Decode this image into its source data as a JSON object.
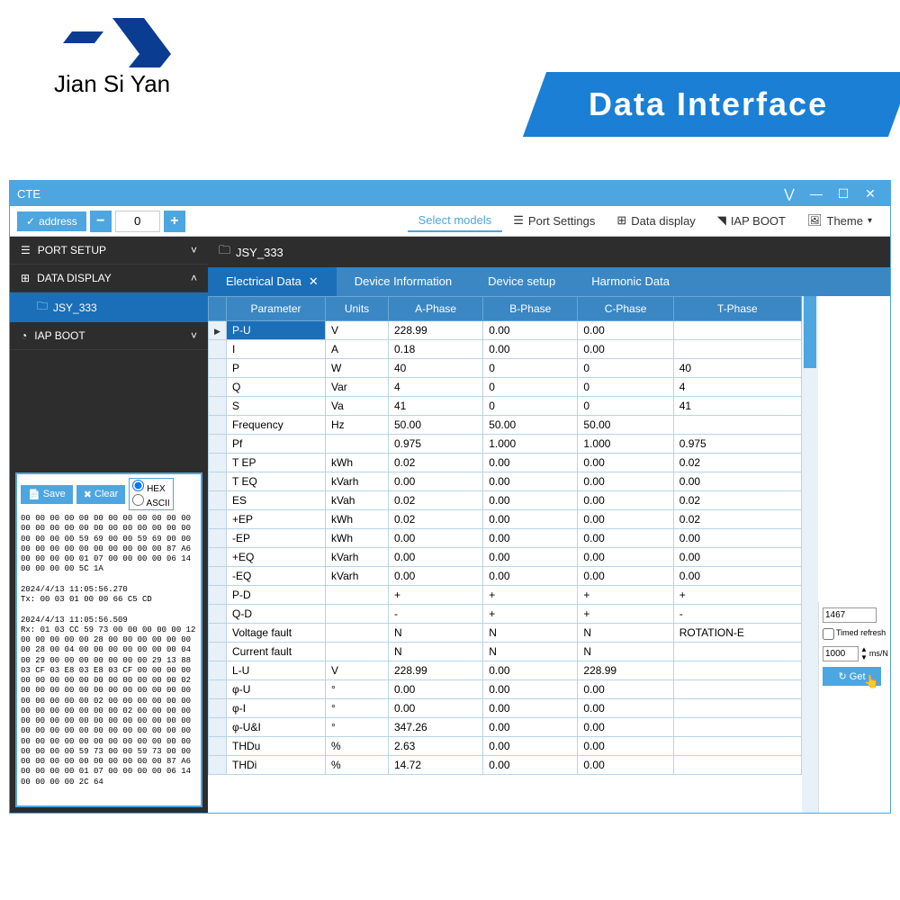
{
  "brand": {
    "logo_text": "Jian Si Yan",
    "logo_color": "#0a3d91"
  },
  "banner": {
    "title": "Data Interface",
    "bg": "#1b7fd6"
  },
  "window": {
    "title": "CTE"
  },
  "toolbar": {
    "address_label": "address",
    "address_value": "0",
    "items": [
      {
        "label": "Select models",
        "active": true
      },
      {
        "label": "Port Settings",
        "icon": "☰"
      },
      {
        "label": "Data display",
        "icon": "⊞"
      },
      {
        "label": "IAP BOOT",
        "icon": "◥"
      },
      {
        "label": "Theme",
        "icon": "🖼",
        "chev": true
      }
    ]
  },
  "sidebar": {
    "items": [
      {
        "icon": "☰",
        "label": "PORT SETUP",
        "chev": "˅"
      },
      {
        "icon": "⊞",
        "label": "DATA DISPLAY",
        "chev": "˄"
      },
      {
        "sub": true,
        "icon": "🗀",
        "label": "JSY_333"
      },
      {
        "icon": "◔",
        "label": "IAP BOOT",
        "chev": "˅"
      }
    ]
  },
  "log": {
    "save": "Save",
    "clear": "Clear",
    "hex": "HEX",
    "ascii": "ASCII",
    "content": "00 00 00 00 00 00 00 00 00 00 00 00\n00 00 00 00 00 00 00 00 00 00 00 00\n00 00 00 00 59 69 00 00 59 69 00 00\n00 00 00 00 00 00 00 00 00 00 87 A6\n00 00 00 00 01 07 00 00 00 00 06 14\n00 00 00 00 5C 1A\n\n2024/4/13 11:05:56.270\nTx: 00 03 01 00 00 66 C5 CD\n\n2024/4/13 11:05:56.509\nRx: 01 03 CC 59 73 00 00 00 00 00 12\n00 00 00 00 00 28 00 00 00 00 00 00\n00 28 00 04 00 00 00 00 00 00 00 04\n00 29 00 00 00 00 00 00 00 29 13 88\n03 CF 03 E8 03 E8 03 CF 00 00 00 00\n00 00 00 00 00 00 00 00 00 00 00 02\n00 00 00 00 00 00 00 00 00 00 00 00\n00 00 00 00 00 02 00 00 00 00 00 00\n00 00 00 00 00 00 00 02 00 00 00 00\n00 00 00 00 00 00 00 00 00 00 00 00\n00 00 00 00 00 00 00 00 00 00 00 00\n00 00 00 00 00 00 00 00 00 00 00 00\n00 00 00 00 59 73 00 00 59 73 00 00\n00 00 00 00 00 00 00 00 00 00 87 A6\n00 00 00 00 01 07 00 00 00 00 06 14\n00 00 00 00 2C 64"
  },
  "breadcrumb": {
    "icon": "🗀",
    "label": "JSY_333"
  },
  "tabs": [
    {
      "label": "Electrical Data",
      "active": true,
      "closable": true
    },
    {
      "label": "Device Information"
    },
    {
      "label": "Device setup"
    },
    {
      "label": "Harmonic Data"
    }
  ],
  "table": {
    "columns": [
      "",
      "Parameter",
      "Units",
      "A-Phase",
      "B-Phase",
      "C-Phase",
      "T-Phase"
    ],
    "rows": [
      {
        "sel": true,
        "param": "P-U",
        "units": "V",
        "a": "228.99",
        "b": "0.00",
        "c": "0.00",
        "t": ""
      },
      {
        "param": "I",
        "units": "A",
        "a": "0.18",
        "b": "0.00",
        "c": "0.00",
        "t": ""
      },
      {
        "param": "P",
        "units": "W",
        "a": "40",
        "b": "0",
        "c": "0",
        "t": "40"
      },
      {
        "param": "Q",
        "units": "Var",
        "a": "4",
        "b": "0",
        "c": "0",
        "t": "4"
      },
      {
        "param": "S",
        "units": "Va",
        "a": "41",
        "b": "0",
        "c": "0",
        "t": "41"
      },
      {
        "param": "Frequency",
        "units": "Hz",
        "a": "50.00",
        "b": "50.00",
        "c": "50.00",
        "t": ""
      },
      {
        "param": "Pf",
        "units": "",
        "a": "0.975",
        "b": "1.000",
        "c": "1.000",
        "t": "0.975"
      },
      {
        "param": "T EP",
        "units": "kWh",
        "a": "0.02",
        "b": "0.00",
        "c": "0.00",
        "t": "0.02"
      },
      {
        "param": "T EQ",
        "units": "kVarh",
        "a": "0.00",
        "b": "0.00",
        "c": "0.00",
        "t": "0.00"
      },
      {
        "param": "ES",
        "units": "kVah",
        "a": "0.02",
        "b": "0.00",
        "c": "0.00",
        "t": "0.02"
      },
      {
        "param": "+EP",
        "units": "kWh",
        "a": "0.02",
        "b": "0.00",
        "c": "0.00",
        "t": "0.02"
      },
      {
        "param": "-EP",
        "units": "kWh",
        "a": "0.00",
        "b": "0.00",
        "c": "0.00",
        "t": "0.00"
      },
      {
        "param": "+EQ",
        "units": "kVarh",
        "a": "0.00",
        "b": "0.00",
        "c": "0.00",
        "t": "0.00"
      },
      {
        "param": "-EQ",
        "units": "kVarh",
        "a": "0.00",
        "b": "0.00",
        "c": "0.00",
        "t": "0.00"
      },
      {
        "param": "P-D",
        "units": "",
        "a": "+",
        "b": "+",
        "c": "+",
        "t": "+"
      },
      {
        "param": "Q-D",
        "units": "",
        "a": "-",
        "b": "+",
        "c": "+",
        "t": "-"
      },
      {
        "param": "Voltage fault",
        "units": "",
        "a": "N",
        "b": "N",
        "c": "N",
        "t": "ROTATION-E"
      },
      {
        "param": "Current fault",
        "units": "",
        "a": "N",
        "b": "N",
        "c": "N",
        "t": ""
      },
      {
        "param": "L-U",
        "units": "V",
        "a": "228.99",
        "b": "0.00",
        "c": "228.99",
        "t": ""
      },
      {
        "param": "φ-U",
        "units": "°",
        "a": "0.00",
        "b": "0.00",
        "c": "0.00",
        "t": ""
      },
      {
        "param": "φ-I",
        "units": "°",
        "a": "0.00",
        "b": "0.00",
        "c": "0.00",
        "t": ""
      },
      {
        "param": "φ-U&I",
        "units": "°",
        "a": "347.26",
        "b": "0.00",
        "c": "0.00",
        "t": ""
      },
      {
        "param": "THDu",
        "units": "%",
        "a": "2.63",
        "b": "0.00",
        "c": "0.00",
        "t": ""
      },
      {
        "param": "THDi",
        "units": "%",
        "a": "14.72",
        "b": "0.00",
        "c": "0.00",
        "t": ""
      }
    ]
  },
  "right_panel": {
    "counter": "1467",
    "timed_refresh": "Timed refresh",
    "interval": "1000",
    "interval_unit": "ms/N",
    "get": "Get"
  },
  "colors": {
    "primary": "#4da6e0",
    "dark": "#2d2d2d",
    "tab_active": "#1a6fb8",
    "tab_bg": "#3a87c4",
    "cell_border": "#b8d4e8",
    "rowhead_bg": "#e8f0f8"
  }
}
